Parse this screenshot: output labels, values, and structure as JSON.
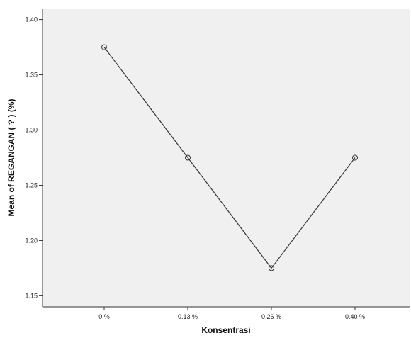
{
  "chart_data": {
    "type": "line",
    "title": "",
    "xlabel": "Konsentrasi",
    "ylabel": "Mean of REGANGAN ( ? ) (%)",
    "categories": [
      "0 %",
      "0.13 %",
      "0.26 %",
      "0.40 %"
    ],
    "values": [
      1.375,
      1.275,
      1.175,
      1.275
    ],
    "ylim": [
      1.14,
      1.41
    ],
    "yticks": [
      1.15,
      1.2,
      1.25,
      1.3,
      1.35,
      1.4
    ],
    "ytick_labels": [
      "1.15",
      "1.20",
      "1.25",
      "1.30",
      "1.35",
      "1.40"
    ],
    "grid": false,
    "legend": "none",
    "marker": "open-circle",
    "colors": {
      "plot_background": "#f0f0f0",
      "line": "#333333",
      "axis": "#333333",
      "page_background": "#ffffff"
    }
  }
}
